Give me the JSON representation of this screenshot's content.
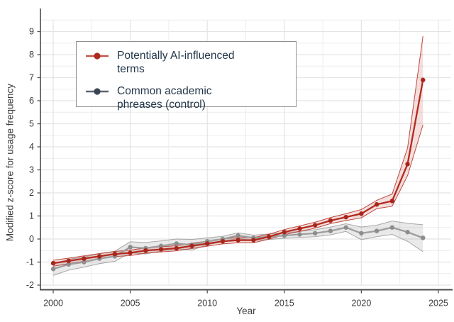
{
  "figure": {
    "y_axis_title": "Modified z-score for usage frequency",
    "x_axis_title": "Year",
    "y_ticks": [
      9,
      8,
      7,
      6,
      5,
      4,
      3,
      2,
      1,
      0,
      -1,
      -2
    ],
    "x_ticks": [
      2000,
      2005,
      2010,
      2015,
      2020,
      2025
    ],
    "background_color": "#ffffff"
  },
  "legend": {
    "items": [
      {
        "label": "Potentially AI-influenced terms",
        "marker_dot_color": "#ae2a1f",
        "marker_line_color": "#c4564b",
        "text_color": "#233649"
      },
      {
        "label": "Common academic phreases (control)",
        "marker_dot_color": "#394552",
        "marker_line_color": "#5b6672",
        "text_color": "#233649"
      }
    ]
  },
  "chart_data": {
    "type": "line",
    "title": "",
    "xlabel": "Year",
    "ylabel": "Modified z-score for usage frequency",
    "xlim": [
      1999.17,
      2025.83
    ],
    "ylim": [
      -2.2,
      10.0
    ],
    "grid": true,
    "minor_grid_step_y": 0.5,
    "minor_grid_step_x": 2.5,
    "legend_position": "upper left",
    "x": [
      2000,
      2001,
      2002,
      2003,
      2004,
      2005,
      2006,
      2007,
      2008,
      2009,
      2010,
      2011,
      2012,
      2013,
      2014,
      2015,
      2016,
      2017,
      2018,
      2019,
      2020,
      2021,
      2022,
      2023,
      2024
    ],
    "series": [
      {
        "name": "Common academic phreases (control)",
        "color": "#9e9e9e",
        "dot_color": "#8d8d8d",
        "band_color": "#9a9a9a",
        "band_fill_opacity": 0.22,
        "band_edge_opacity": 0.85,
        "values": [
          -1.3,
          -1.1,
          -1.0,
          -0.85,
          -0.75,
          -0.35,
          -0.4,
          -0.3,
          -0.2,
          -0.25,
          -0.1,
          0.0,
          0.15,
          0.05,
          0.1,
          0.15,
          0.2,
          0.25,
          0.35,
          0.5,
          0.25,
          0.35,
          0.5,
          0.3,
          0.05
        ],
        "band_upper": [
          -1.08,
          -0.88,
          -0.78,
          -0.63,
          -0.53,
          -0.12,
          -0.15,
          -0.08,
          0.0,
          -0.02,
          0.05,
          0.12,
          0.27,
          0.17,
          0.22,
          0.27,
          0.33,
          0.4,
          0.52,
          0.66,
          0.52,
          0.6,
          0.78,
          0.68,
          0.62
        ],
        "band_lower": [
          -1.58,
          -1.35,
          -1.22,
          -1.07,
          -0.97,
          -0.6,
          -0.65,
          -0.52,
          -0.42,
          -0.48,
          -0.25,
          -0.12,
          0.03,
          -0.07,
          -0.02,
          0.03,
          0.07,
          0.1,
          0.18,
          0.33,
          -0.03,
          0.1,
          0.2,
          -0.1,
          -0.55
        ]
      },
      {
        "name": "Potentially AI-influenced terms",
        "color": "#b42a1f",
        "dot_color": "#a8251b",
        "band_color": "#b42a1f",
        "band_fill_opacity": 0.15,
        "band_edge_opacity": 0.85,
        "values": [
          -1.05,
          -0.95,
          -0.85,
          -0.75,
          -0.65,
          -0.6,
          -0.5,
          -0.45,
          -0.4,
          -0.3,
          -0.2,
          -0.1,
          -0.05,
          -0.05,
          0.1,
          0.3,
          0.45,
          0.6,
          0.8,
          0.95,
          1.1,
          1.5,
          1.65,
          3.25,
          6.9
        ],
        "band_upper": [
          -0.92,
          -0.83,
          -0.73,
          -0.63,
          -0.54,
          -0.48,
          -0.39,
          -0.34,
          -0.29,
          -0.19,
          -0.09,
          0.01,
          0.06,
          0.06,
          0.21,
          0.41,
          0.57,
          0.73,
          0.93,
          1.1,
          1.28,
          1.68,
          1.95,
          3.95,
          8.8
        ],
        "band_lower": [
          -1.18,
          -1.07,
          -0.97,
          -0.87,
          -0.76,
          -0.72,
          -0.61,
          -0.56,
          -0.51,
          -0.41,
          -0.31,
          -0.21,
          -0.16,
          -0.16,
          -0.01,
          0.19,
          0.33,
          0.47,
          0.67,
          0.8,
          0.92,
          1.32,
          1.42,
          2.75,
          4.95
        ]
      }
    ]
  }
}
